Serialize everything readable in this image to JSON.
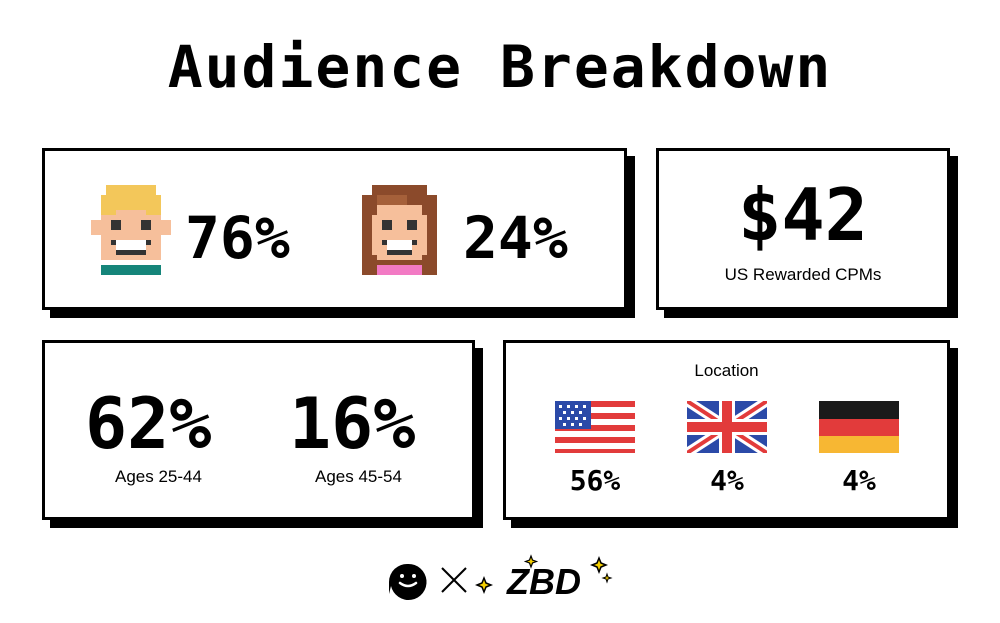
{
  "title": "Audience Breakdown",
  "gender": {
    "male_pct": "76%",
    "female_pct": "24%",
    "male_icon": "male-avatar-icon",
    "female_icon": "female-avatar-icon"
  },
  "cpm": {
    "value": "$42",
    "label": "US Rewarded CPMs"
  },
  "age": [
    {
      "pct": "62%",
      "label": "Ages 25-44"
    },
    {
      "pct": "16%",
      "label": "Ages 45-54"
    }
  ],
  "location": {
    "title": "Location",
    "items": [
      {
        "flag": "us-flag-icon",
        "pct": "56%"
      },
      {
        "flag": "uk-flag-icon",
        "pct": "4%"
      },
      {
        "flag": "germany-flag-icon",
        "pct": "4%"
      }
    ]
  },
  "footer": {
    "partner_logo": "smiley-logo-icon",
    "separator": "×",
    "brand": "ZBD"
  },
  "colors": {
    "shadow": "#000000",
    "male_hair": "#f3c75a",
    "female_hair": "#8b4a2b",
    "skin": "#f6bf9b",
    "male_shirt": "#15857a",
    "female_shirt": "#f27ac4"
  }
}
